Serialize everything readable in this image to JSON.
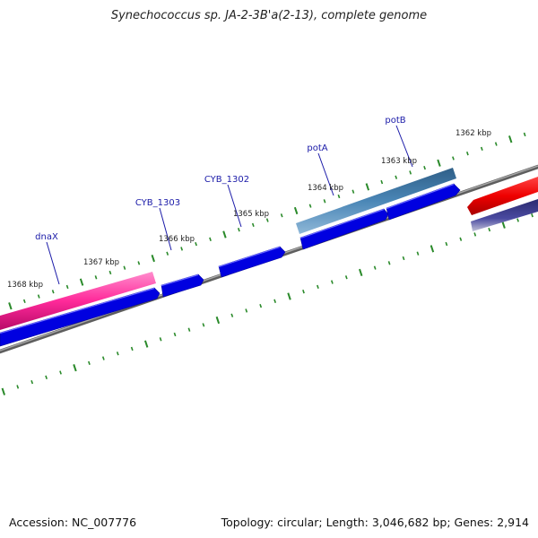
{
  "title": "Synechococcus sp. JA-2-3B'a(2-13), complete genome",
  "footer": {
    "accession": "Accession: NC_007776",
    "summary": "Topology: circular; Length: 3,046,682 bp; Genes: 2,914"
  },
  "gene_labels": [
    "dnaX",
    "CYB_1303",
    "CYB_1302",
    "potA",
    "potB"
  ],
  "kbp_labels": [
    "1368 kbp",
    "1367 kbp",
    "1366 kbp",
    "1365 kbp",
    "1364 kbp",
    "1363 kbp",
    "1362 kbp"
  ],
  "colors": {
    "cds_forward": "#0000e0",
    "gene_pink": "#ff2a9a",
    "gene_steel": "#3c78a8",
    "gene_red": "#ee0000",
    "gene_navy": "#3a3a8a",
    "backbone": "#7a7a7a",
    "tick_green": "#2a8a2a"
  }
}
